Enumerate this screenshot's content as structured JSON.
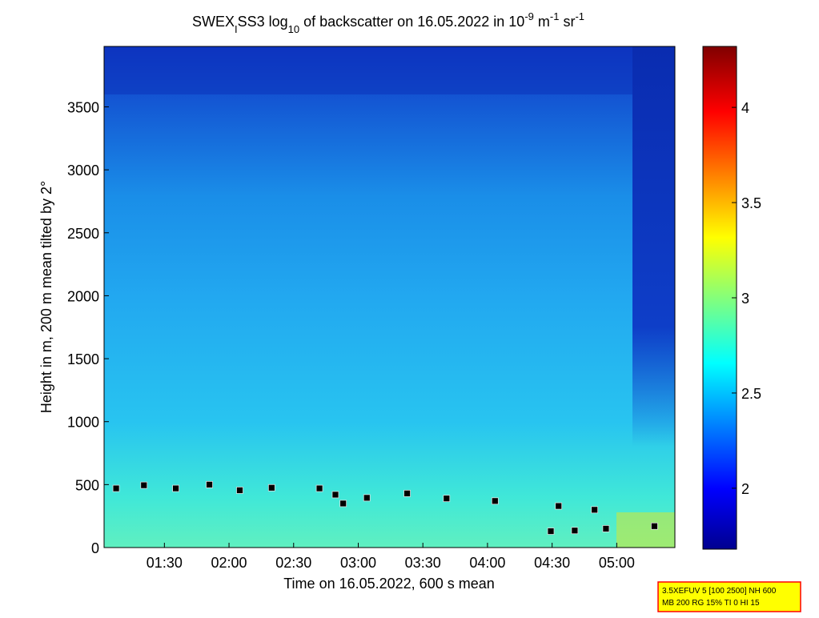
{
  "chart_data": {
    "type": "line",
    "title_parts": [
      "SWEX",
      "I",
      "SS3 log",
      "10",
      " of backscatter on 16.05.2022 in 10",
      "-9",
      " m",
      "-1",
      " sr",
      "-1"
    ],
    "x_label": "Time on 16.05.2022, 600 s mean",
    "y_label": "Height in m, 200 m mean tilted by 2°",
    "xlim": [
      62,
      327
    ],
    "xticks": [
      {
        "value": 90,
        "label": "01:30"
      },
      {
        "value": 120,
        "label": "02:00"
      },
      {
        "value": 150,
        "label": "02:30"
      },
      {
        "value": 180,
        "label": "03:00"
      },
      {
        "value": 210,
        "label": "03:30"
      },
      {
        "value": 240,
        "label": "04:00"
      },
      {
        "value": 270,
        "label": "04:30"
      },
      {
        "value": 300,
        "label": "05:00"
      }
    ],
    "ylim": [
      0,
      3980
    ],
    "yticks": [
      0,
      500,
      1000,
      1500,
      2000,
      2500,
      3000,
      3500
    ],
    "clim": [
      1.68,
      4.32
    ],
    "cticks": [
      2,
      2.5,
      3,
      3.5,
      4
    ],
    "x": [
      67.6,
      80.5,
      95.3,
      110.9,
      125,
      139.8,
      162,
      169.4,
      173,
      184,
      202.7,
      221,
      243.5,
      273,
      289.7,
      null,
      269.4,
      280.5,
      295,
      317.5
    ],
    "series": [
      {
        "color": "#000000",
        "values": [
          470,
          495,
          470,
          500,
          455,
          475,
          470,
          420,
          350,
          395,
          430,
          390,
          370,
          330,
          300,
          null,
          130,
          135,
          150,
          170
        ]
      }
    ],
    "info": [
      "3.5XEFUV 5 [100 2500] NH 600",
      "MB 200 RG 15% TI 0 HI 15"
    ]
  }
}
